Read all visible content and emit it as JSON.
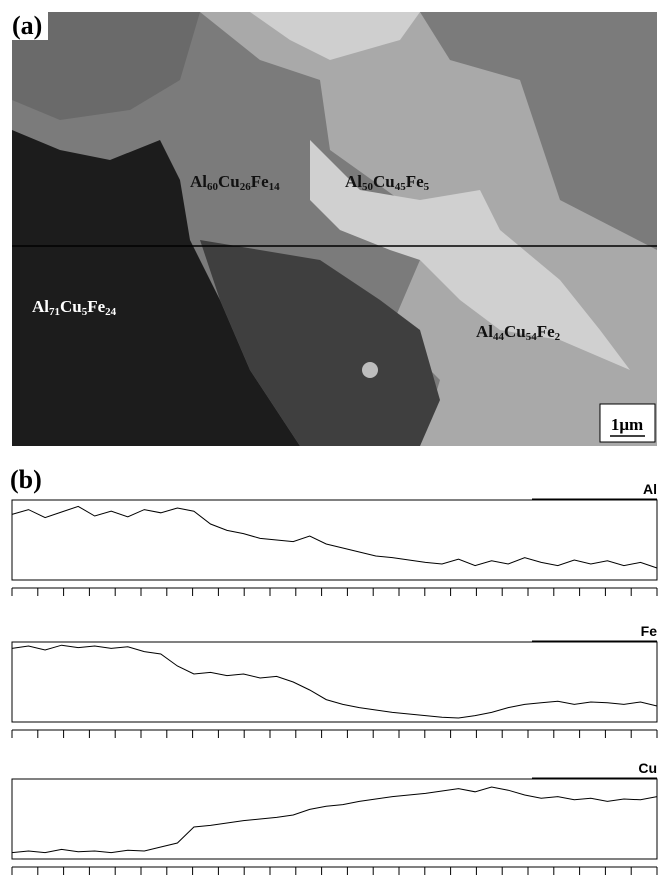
{
  "figure": {
    "panel_a": {
      "label": "(a)",
      "scale_bar": "1μm",
      "phases": [
        "Al60Cu26Fe14",
        "Al50Cu45Fe5",
        "Al71Cu5Fe24",
        "Al44Cu54Fe2"
      ]
    },
    "panel_b": {
      "label": "(b)",
      "profiles": [
        {
          "name": "Al",
          "values": [
            82,
            88,
            78,
            85,
            92,
            80,
            86,
            79,
            88,
            84,
            90,
            86,
            70,
            62,
            58,
            52,
            50,
            48,
            55,
            45,
            40,
            35,
            30,
            28,
            25,
            22,
            20,
            26,
            18,
            24,
            20,
            28,
            22,
            18,
            25,
            20,
            24,
            18,
            22,
            15
          ]
        },
        {
          "name": "Fe",
          "values": [
            92,
            95,
            90,
            96,
            93,
            95,
            92,
            94,
            88,
            85,
            70,
            60,
            62,
            58,
            60,
            55,
            57,
            50,
            40,
            28,
            22,
            18,
            15,
            12,
            10,
            8,
            6,
            5,
            8,
            12,
            18,
            22,
            24,
            26,
            22,
            25,
            24,
            22,
            25,
            20
          ]
        },
        {
          "name": "Cu",
          "values": [
            8,
            10,
            8,
            12,
            9,
            10,
            8,
            11,
            10,
            15,
            20,
            40,
            42,
            45,
            48,
            50,
            52,
            55,
            62,
            66,
            68,
            72,
            75,
            78,
            80,
            82,
            85,
            88,
            84,
            90,
            86,
            80,
            76,
            78,
            74,
            76,
            72,
            75,
            74,
            78
          ]
        }
      ]
    }
  }
}
